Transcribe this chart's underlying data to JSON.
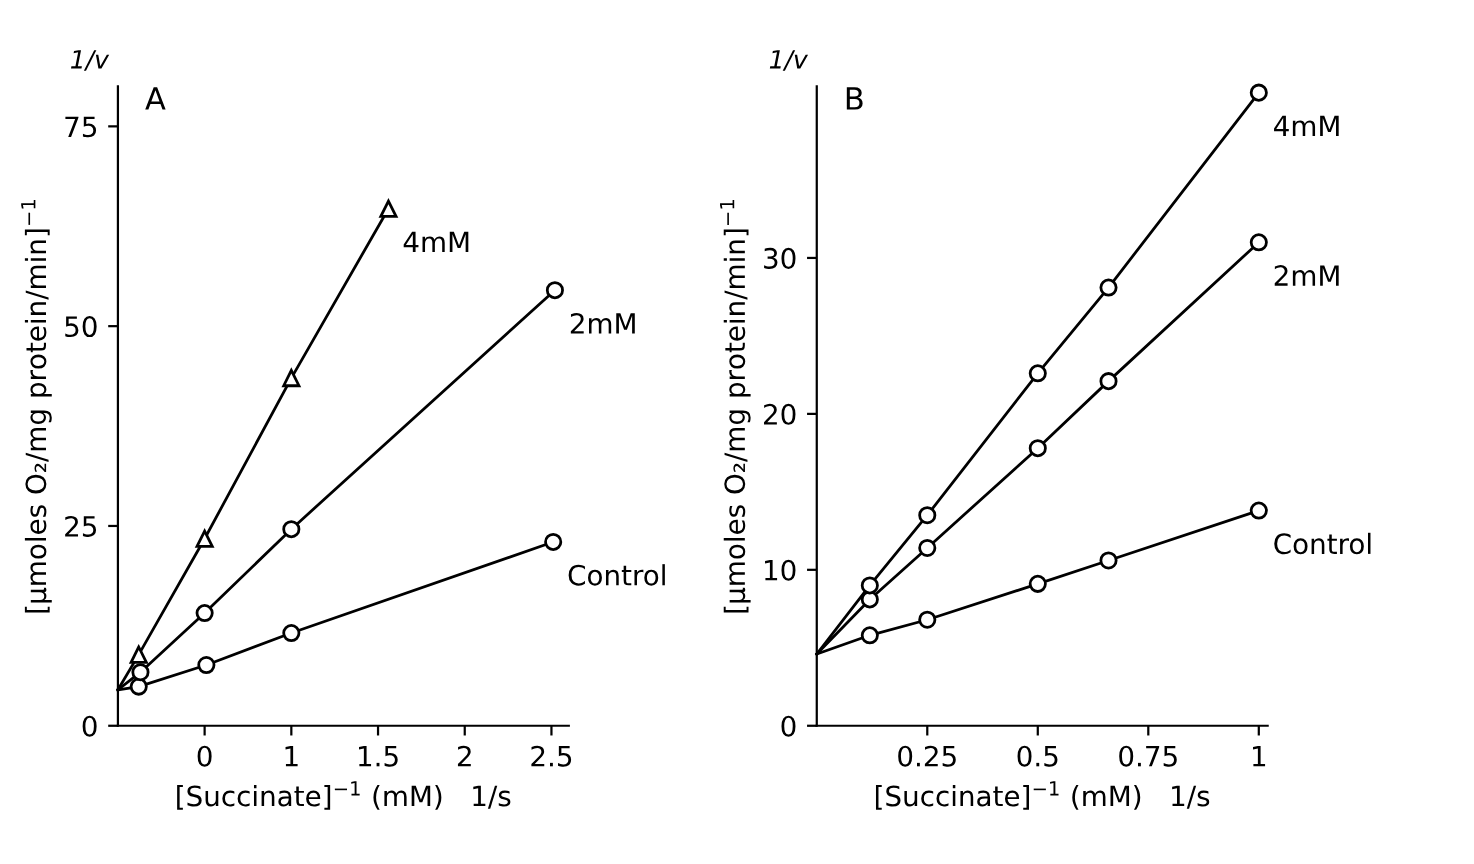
{
  "chart_data": [
    {
      "type": "line",
      "title": "A",
      "xlabel": "[Succinate]$^{−1}$ (mM)   1/s",
      "ylabel": "[µmoles O₂/mg protein/min]$^{−1}$",
      "annotations": [
        "1/v"
      ],
      "xlim": [
        0,
        2.6
      ],
      "xticks": [
        {
          "value": 0.5,
          "label": "0"
        },
        1,
        1.5,
        2,
        2.5
      ],
      "ylim": [
        0,
        80
      ],
      "yticks": [
        0,
        25,
        50,
        75
      ],
      "grid": false,
      "legend": false,
      "series": [
        {
          "name": "4mM",
          "color": "#000000",
          "marker": "triangle",
          "x": [
            0,
            0.12,
            0.5,
            1.0,
            1.56
          ],
          "values": [
            4.5,
            8.9,
            23.4,
            43.5,
            64.7
          ]
        },
        {
          "name": "2mM",
          "color": "#000000",
          "marker": "circle",
          "x": [
            0,
            0.13,
            0.5,
            1.0,
            2.52
          ],
          "values": [
            4.5,
            6.7,
            14.1,
            24.6,
            54.5
          ]
        },
        {
          "name": "Control",
          "color": "#000000",
          "marker": "circle",
          "x": [
            0,
            0.12,
            0.51,
            1.0,
            2.51
          ],
          "values": [
            4.5,
            4.9,
            7.6,
            11.6,
            23.0
          ]
        }
      ]
    },
    {
      "type": "line",
      "title": "B",
      "xlabel": "[Succinate]$^{−1}$ (mM)   1/s",
      "ylabel": "[µmoles O₂/mg protein/min]$^{−1}$",
      "annotations": [
        "1/v"
      ],
      "xlim": [
        0,
        1.02
      ],
      "xticks": [
        0.25,
        0.5,
        0.75,
        1
      ],
      "ylim": [
        0,
        41
      ],
      "yticks": [
        0,
        10,
        20,
        30
      ],
      "grid": false,
      "legend": false,
      "series": [
        {
          "name": "4mM",
          "color": "#000000",
          "marker": "circle",
          "x": [
            0,
            0.12,
            0.25,
            0.5,
            0.66,
            1.0
          ],
          "values": [
            4.6,
            9.0,
            13.5,
            22.6,
            28.1,
            40.6
          ]
        },
        {
          "name": "2mM",
          "color": "#000000",
          "marker": "circle",
          "x": [
            0,
            0.12,
            0.25,
            0.5,
            0.66,
            1.0
          ],
          "values": [
            4.6,
            8.1,
            11.4,
            17.8,
            22.1,
            31.0
          ]
        },
        {
          "name": "Control",
          "color": "#000000",
          "marker": "circle",
          "x": [
            0,
            0.12,
            0.25,
            0.5,
            0.66,
            1.0
          ],
          "values": [
            4.6,
            5.8,
            6.8,
            9.1,
            10.6,
            13.8
          ]
        }
      ]
    }
  ]
}
